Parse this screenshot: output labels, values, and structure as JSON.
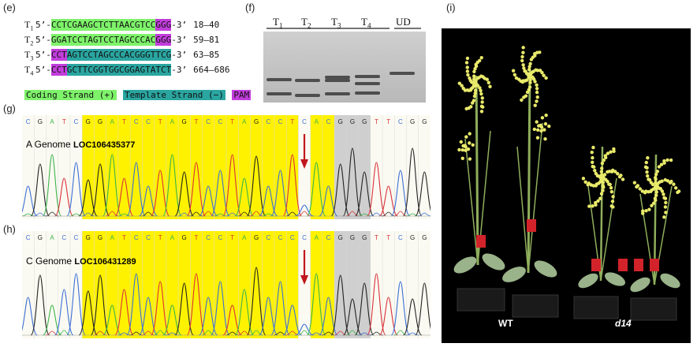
{
  "panels": {
    "e": "(e)",
    "f": "(f)",
    "g": "(g)",
    "h": "(h)",
    "i": "(i)"
  },
  "sequences": [
    {
      "name": "T",
      "sub": "1",
      "prefix": "5’-",
      "protospacer": "CCTCGAAGCTCTTAACGTCC",
      "pam": "GGG",
      "suffix": "-3’",
      "range": "18–40",
      "strand": "coding"
    },
    {
      "name": "T",
      "sub": "2",
      "prefix": "5’-",
      "protospacer": "GGATCCTAGTCCTAGCCCAC",
      "pam": "GGG",
      "suffix": "-3’",
      "range": "59–81",
      "strand": "coding"
    },
    {
      "name": "T",
      "sub": "3",
      "prefix": "5’-",
      "pam": "CCT",
      "protospacer": "AGTCCTAGCCCACGGGTTCG",
      "suffix": "-3’",
      "range": "63–85",
      "strand": "template"
    },
    {
      "name": "T",
      "sub": "4",
      "prefix": "5’-",
      "pam": "CCT",
      "protospacer": "GCTTCGGTGGCGGAGTATCT",
      "suffix": "-3’",
      "range": "664–686",
      "strand": "template"
    }
  ],
  "legend": {
    "coding": "Coding Strand (+)",
    "template": "Template Strand (−)",
    "pam": "PAM"
  },
  "gel": {
    "lanes": [
      {
        "name": "T",
        "sub": "1"
      },
      {
        "name": "T",
        "sub": "2"
      },
      {
        "name": "T",
        "sub": "3"
      },
      {
        "name": "T",
        "sub": "4"
      },
      {
        "name": "UD",
        "sub": ""
      }
    ]
  },
  "chromatogram_g": {
    "genome": "A Genome",
    "locus": "LOC106435377",
    "bases": [
      "C",
      "G",
      "A",
      "T",
      "C",
      "G",
      "G",
      "A",
      "T",
      "C",
      "C",
      "T",
      "A",
      "G",
      "T",
      "C",
      "C",
      "T",
      "A",
      "G",
      "C",
      "C",
      "T",
      "C",
      "A",
      "C",
      "G",
      "G",
      "G",
      "T",
      "T",
      "C",
      "G",
      "G"
    ]
  },
  "chromatogram_h": {
    "genome": "C Genome",
    "locus": "LOC106431289",
    "bases": [
      "C",
      "G",
      "A",
      "C",
      "C",
      "G",
      "G",
      "A",
      "T",
      "C",
      "C",
      "T",
      "A",
      "G",
      "T",
      "C",
      "C",
      "T",
      "A",
      "G",
      "C",
      "C",
      "C",
      "C",
      "A",
      "C",
      "G",
      "G",
      "G",
      "T",
      "T",
      "C",
      "G",
      "G"
    ]
  },
  "plants": {
    "left": "WT",
    "right": "d14"
  },
  "colors": {
    "A": "#3cb44b",
    "C": "#3b6fd6",
    "G": "#222222",
    "T": "#d8323a",
    "protospacer_bg": "#fff200",
    "pam_bg": "#cfcfcf",
    "arrow": "#c0161c"
  }
}
